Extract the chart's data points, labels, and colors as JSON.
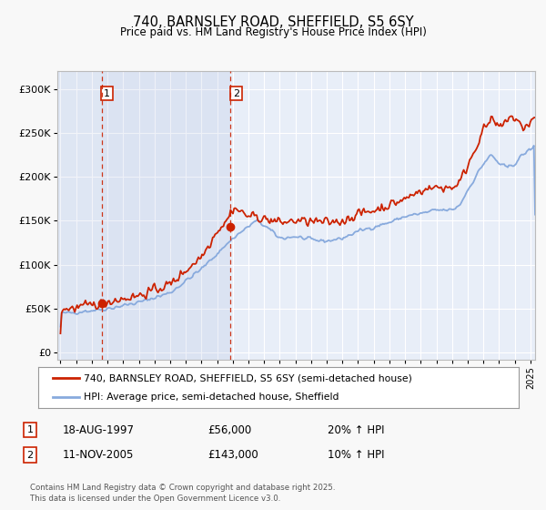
{
  "title": "740, BARNSLEY ROAD, SHEFFIELD, S5 6SY",
  "subtitle": "Price paid vs. HM Land Registry's House Price Index (HPI)",
  "ylabel_ticks": [
    "£0",
    "£50K",
    "£100K",
    "£150K",
    "£200K",
    "£250K",
    "£300K"
  ],
  "ytick_values": [
    0,
    50000,
    100000,
    150000,
    200000,
    250000,
    300000
  ],
  "ylim": [
    -8000,
    320000
  ],
  "xlim_start": 1994.8,
  "xlim_end": 2025.3,
  "hpi_color": "#88aadd",
  "price_color": "#cc2200",
  "bg_plot": "#e8eef8",
  "bg_figure": "#f8f8f8",
  "grid_color": "#ffffff",
  "purchase1_x": 1997.62,
  "purchase1_y": 56000,
  "purchase1_label": "1",
  "purchase2_x": 2005.86,
  "purchase2_y": 143000,
  "purchase2_label": "2",
  "legend_line1": "740, BARNSLEY ROAD, SHEFFIELD, S5 6SY (semi-detached house)",
  "legend_line2": "HPI: Average price, semi-detached house, Sheffield",
  "annotation1_num": "1",
  "annotation1_date": "18-AUG-1997",
  "annotation1_price": "£56,000",
  "annotation1_hpi": "20% ↑ HPI",
  "annotation2_num": "2",
  "annotation2_date": "11-NOV-2005",
  "annotation2_price": "£143,000",
  "annotation2_hpi": "10% ↑ HPI",
  "footer": "Contains HM Land Registry data © Crown copyright and database right 2025.\nThis data is licensed under the Open Government Licence v3.0."
}
